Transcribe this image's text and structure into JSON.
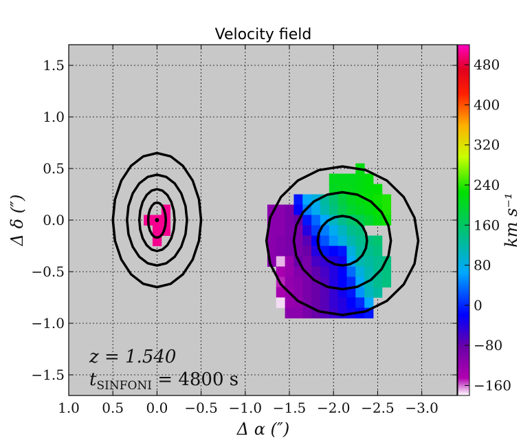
{
  "chart_data": {
    "type": "heatmap",
    "title": "Velocity field",
    "xlabel": "Δ α  (″)",
    "ylabel": "Δ δ  (″)",
    "xlim": [
      1.0,
      -3.4
    ],
    "ylim": [
      -1.7,
      1.7
    ],
    "x_ticks": [
      "1.0",
      "0.5",
      "0.0",
      "−0.5",
      "−1.0",
      "−1.5",
      "−2.0",
      "−2.5",
      "−3.0"
    ],
    "x_tick_values": [
      1.0,
      0.5,
      0.0,
      -0.5,
      -1.0,
      -1.5,
      -2.0,
      -2.5,
      -3.0
    ],
    "y_ticks": [
      "1.5",
      "1.0",
      "0.5",
      "0.0",
      "−0.5",
      "−1.0",
      "−1.5"
    ],
    "y_tick_values": [
      1.5,
      1.0,
      0.5,
      0.0,
      -0.5,
      -1.0,
      -1.5
    ],
    "grid": true,
    "annotations": {
      "redshift": "z = 1.540",
      "exposure_symbol": "t",
      "exposure_subscript": "SINFONI",
      "exposure_value": " = 4800 s"
    },
    "colorbar": {
      "label": "km s⁻¹",
      "range": [
        -180,
        520
      ],
      "ticks": [
        "480",
        "400",
        "320",
        "240",
        "160",
        "80",
        "0",
        "−80",
        "−160"
      ],
      "tick_values": [
        480,
        400,
        320,
        240,
        160,
        80,
        0,
        -80,
        -160
      ]
    },
    "pixel_size_arcsec": 0.1,
    "velocity_pixels": [
      {
        "x": -0.1,
        "y": 0.1,
        "v": 505
      },
      {
        "x": -0.1,
        "y": 0.0,
        "v": 505
      },
      {
        "x": 0.0,
        "y": 0.0,
        "v": 505
      },
      {
        "x": 0.1,
        "y": 0.0,
        "v": 505
      },
      {
        "x": 0.0,
        "y": -0.1,
        "v": 505
      },
      {
        "x": -0.1,
        "y": -0.1,
        "v": 505
      },
      {
        "x": 0.0,
        "y": -0.2,
        "v": 505
      },
      {
        "x": -2.3,
        "y": 0.5,
        "v": 190
      },
      {
        "x": -2.0,
        "y": 0.4,
        "v": 185
      },
      {
        "x": -2.1,
        "y": 0.4,
        "v": 185
      },
      {
        "x": -2.2,
        "y": 0.4,
        "v": 185
      },
      {
        "x": -2.3,
        "y": 0.4,
        "v": 190
      },
      {
        "x": -2.4,
        "y": 0.4,
        "v": 195
      },
      {
        "x": -2.0,
        "y": 0.3,
        "v": 180
      },
      {
        "x": -2.1,
        "y": 0.3,
        "v": 185
      },
      {
        "x": -2.2,
        "y": 0.3,
        "v": 185
      },
      {
        "x": -2.3,
        "y": 0.3,
        "v": 190
      },
      {
        "x": -2.4,
        "y": 0.3,
        "v": 195
      },
      {
        "x": -2.5,
        "y": 0.3,
        "v": 200
      },
      {
        "x": -1.6,
        "y": 0.2,
        "v": -30
      },
      {
        "x": -1.7,
        "y": 0.2,
        "v": 40
      },
      {
        "x": -1.8,
        "y": 0.2,
        "v": 60
      },
      {
        "x": -1.9,
        "y": 0.2,
        "v": 100
      },
      {
        "x": -2.0,
        "y": 0.2,
        "v": 130
      },
      {
        "x": -2.1,
        "y": 0.2,
        "v": 160
      },
      {
        "x": -2.2,
        "y": 0.2,
        "v": 180
      },
      {
        "x": -2.3,
        "y": 0.2,
        "v": 190
      },
      {
        "x": -2.4,
        "y": 0.2,
        "v": 200
      },
      {
        "x": -2.5,
        "y": 0.2,
        "v": 205
      },
      {
        "x": -2.6,
        "y": 0.2,
        "v": 210
      },
      {
        "x": -1.3,
        "y": 0.1,
        "v": -120
      },
      {
        "x": -1.4,
        "y": 0.1,
        "v": -120
      },
      {
        "x": -1.5,
        "y": 0.1,
        "v": -110
      },
      {
        "x": -1.6,
        "y": 0.1,
        "v": -40
      },
      {
        "x": -1.7,
        "y": 0.1,
        "v": 20
      },
      {
        "x": -1.8,
        "y": 0.1,
        "v": 50
      },
      {
        "x": -1.9,
        "y": 0.1,
        "v": 90
      },
      {
        "x": -2.0,
        "y": 0.1,
        "v": 120
      },
      {
        "x": -2.1,
        "y": 0.1,
        "v": 150
      },
      {
        "x": -2.2,
        "y": 0.1,
        "v": 170
      },
      {
        "x": -2.3,
        "y": 0.1,
        "v": 180
      },
      {
        "x": -2.4,
        "y": 0.1,
        "v": 190
      },
      {
        "x": -2.5,
        "y": 0.1,
        "v": 200
      },
      {
        "x": -2.6,
        "y": 0.1,
        "v": 210
      },
      {
        "x": -1.3,
        "y": 0.0,
        "v": -120
      },
      {
        "x": -1.4,
        "y": 0.0,
        "v": -120
      },
      {
        "x": -1.5,
        "y": 0.0,
        "v": -110
      },
      {
        "x": -1.6,
        "y": 0.0,
        "v": -100
      },
      {
        "x": -1.7,
        "y": 0.0,
        "v": -30
      },
      {
        "x": -1.8,
        "y": 0.0,
        "v": 10
      },
      {
        "x": -1.9,
        "y": 0.0,
        "v": 40
      },
      {
        "x": -2.0,
        "y": 0.0,
        "v": 80
      },
      {
        "x": -2.1,
        "y": 0.0,
        "v": 110
      },
      {
        "x": -2.2,
        "y": 0.0,
        "v": 130
      },
      {
        "x": -2.3,
        "y": 0.0,
        "v": 150
      },
      {
        "x": -2.4,
        "y": 0.0,
        "v": 170
      },
      {
        "x": -2.5,
        "y": 0.0,
        "v": 190
      },
      {
        "x": -2.6,
        "y": 0.0,
        "v": 205
      },
      {
        "x": -1.3,
        "y": -0.1,
        "v": -120
      },
      {
        "x": -1.4,
        "y": -0.1,
        "v": -120
      },
      {
        "x": -1.5,
        "y": -0.1,
        "v": -110
      },
      {
        "x": -1.6,
        "y": -0.1,
        "v": -110
      },
      {
        "x": -1.7,
        "y": -0.1,
        "v": -60
      },
      {
        "x": -1.8,
        "y": -0.1,
        "v": -10
      },
      {
        "x": -1.9,
        "y": -0.1,
        "v": 20
      },
      {
        "x": -2.0,
        "y": -0.1,
        "v": 50
      },
      {
        "x": -2.1,
        "y": -0.1,
        "v": 80
      },
      {
        "x": -2.2,
        "y": -0.1,
        "v": 110
      },
      {
        "x": -2.3,
        "y": -0.1,
        "v": 120
      },
      {
        "x": -1.3,
        "y": -0.2,
        "v": -120
      },
      {
        "x": -1.4,
        "y": -0.2,
        "v": -115
      },
      {
        "x": -1.5,
        "y": -0.2,
        "v": -110
      },
      {
        "x": -1.6,
        "y": -0.2,
        "v": -110
      },
      {
        "x": -1.7,
        "y": -0.2,
        "v": -90
      },
      {
        "x": -1.8,
        "y": -0.2,
        "v": -40
      },
      {
        "x": -1.9,
        "y": -0.2,
        "v": 0
      },
      {
        "x": -2.0,
        "y": -0.2,
        "v": 30
      },
      {
        "x": -2.1,
        "y": -0.2,
        "v": 60
      },
      {
        "x": -2.2,
        "y": -0.2,
        "v": 90
      },
      {
        "x": -2.3,
        "y": -0.2,
        "v": 110
      },
      {
        "x": -2.4,
        "y": -0.2,
        "v": 120
      },
      {
        "x": -2.5,
        "y": -0.2,
        "v": 130
      },
      {
        "x": -1.3,
        "y": -0.3,
        "v": -120
      },
      {
        "x": -1.4,
        "y": -0.3,
        "v": -115
      },
      {
        "x": -1.5,
        "y": -0.3,
        "v": -110
      },
      {
        "x": -1.6,
        "y": -0.3,
        "v": -110
      },
      {
        "x": -1.7,
        "y": -0.3,
        "v": -100
      },
      {
        "x": -1.8,
        "y": -0.3,
        "v": -60
      },
      {
        "x": -1.9,
        "y": -0.3,
        "v": -30
      },
      {
        "x": -2.0,
        "y": -0.3,
        "v": -40
      },
      {
        "x": -2.1,
        "y": -0.3,
        "v": -30
      },
      {
        "x": -2.2,
        "y": -0.3,
        "v": 60
      },
      {
        "x": -2.3,
        "y": -0.3,
        "v": 100
      },
      {
        "x": -2.4,
        "y": -0.3,
        "v": 110
      },
      {
        "x": -2.5,
        "y": -0.3,
        "v": 120
      },
      {
        "x": -1.3,
        "y": -0.4,
        "v": -120
      },
      {
        "x": -1.4,
        "y": -0.4,
        "v": -170
      },
      {
        "x": -1.5,
        "y": -0.4,
        "v": -130
      },
      {
        "x": -1.6,
        "y": -0.4,
        "v": -100
      },
      {
        "x": -1.7,
        "y": -0.4,
        "v": -110
      },
      {
        "x": -1.8,
        "y": -0.4,
        "v": -80
      },
      {
        "x": -1.9,
        "y": -0.4,
        "v": -70
      },
      {
        "x": -2.0,
        "y": -0.4,
        "v": -60
      },
      {
        "x": -2.1,
        "y": -0.4,
        "v": -50
      },
      {
        "x": -2.2,
        "y": -0.4,
        "v": 40
      },
      {
        "x": -2.3,
        "y": -0.4,
        "v": 90
      },
      {
        "x": -2.4,
        "y": -0.4,
        "v": 100
      },
      {
        "x": -2.5,
        "y": -0.4,
        "v": 110
      },
      {
        "x": -2.6,
        "y": -0.4,
        "v": 120
      },
      {
        "x": -1.4,
        "y": -0.5,
        "v": -140
      },
      {
        "x": -1.5,
        "y": -0.5,
        "v": -130
      },
      {
        "x": -1.6,
        "y": -0.5,
        "v": -115
      },
      {
        "x": -1.7,
        "y": -0.5,
        "v": -110
      },
      {
        "x": -1.8,
        "y": -0.5,
        "v": -95
      },
      {
        "x": -1.9,
        "y": -0.5,
        "v": -80
      },
      {
        "x": -2.0,
        "y": -0.5,
        "v": -60
      },
      {
        "x": -2.1,
        "y": -0.5,
        "v": -40
      },
      {
        "x": -2.2,
        "y": -0.5,
        "v": 10
      },
      {
        "x": -2.3,
        "y": -0.5,
        "v": 60
      },
      {
        "x": -2.4,
        "y": -0.5,
        "v": 90
      },
      {
        "x": -2.5,
        "y": -0.5,
        "v": 110
      },
      {
        "x": -2.6,
        "y": -0.5,
        "v": 120
      },
      {
        "x": -1.4,
        "y": -0.6,
        "v": -150
      },
      {
        "x": -1.5,
        "y": -0.6,
        "v": -125
      },
      {
        "x": -1.6,
        "y": -0.6,
        "v": -120
      },
      {
        "x": -1.7,
        "y": -0.6,
        "v": -110
      },
      {
        "x": -1.8,
        "y": -0.6,
        "v": -100
      },
      {
        "x": -1.9,
        "y": -0.6,
        "v": -85
      },
      {
        "x": -2.0,
        "y": -0.6,
        "v": -60
      },
      {
        "x": -2.1,
        "y": -0.6,
        "v": -40
      },
      {
        "x": -2.2,
        "y": -0.6,
        "v": -20
      },
      {
        "x": -2.3,
        "y": -0.6,
        "v": 40
      },
      {
        "x": -2.4,
        "y": -0.6,
        "v": 90
      },
      {
        "x": -2.5,
        "y": -0.6,
        "v": 110
      },
      {
        "x": -2.6,
        "y": -0.6,
        "v": 120
      },
      {
        "x": -1.4,
        "y": -0.7,
        "v": -140
      },
      {
        "x": -1.5,
        "y": -0.7,
        "v": -130
      },
      {
        "x": -1.6,
        "y": -0.7,
        "v": -120
      },
      {
        "x": -1.7,
        "y": -0.7,
        "v": -110
      },
      {
        "x": -1.8,
        "y": -0.7,
        "v": -100
      },
      {
        "x": -1.9,
        "y": -0.7,
        "v": -90
      },
      {
        "x": -2.0,
        "y": -0.7,
        "v": -70
      },
      {
        "x": -2.1,
        "y": -0.7,
        "v": -50
      },
      {
        "x": -2.2,
        "y": -0.7,
        "v": -30
      },
      {
        "x": -2.3,
        "y": -0.7,
        "v": 30
      },
      {
        "x": -2.4,
        "y": -0.7,
        "v": 80
      },
      {
        "x": -2.5,
        "y": -0.7,
        "v": 100
      },
      {
        "x": -1.4,
        "y": -0.8,
        "v": -175
      },
      {
        "x": -1.5,
        "y": -0.8,
        "v": -130
      },
      {
        "x": -1.6,
        "y": -0.8,
        "v": -125
      },
      {
        "x": -1.7,
        "y": -0.8,
        "v": -110
      },
      {
        "x": -1.8,
        "y": -0.8,
        "v": -100
      },
      {
        "x": -1.9,
        "y": -0.8,
        "v": -90
      },
      {
        "x": -2.0,
        "y": -0.8,
        "v": -70
      },
      {
        "x": -2.1,
        "y": -0.8,
        "v": -60
      },
      {
        "x": -2.2,
        "y": -0.8,
        "v": -40
      },
      {
        "x": -2.3,
        "y": -0.8,
        "v": -20
      },
      {
        "x": -2.4,
        "y": -0.8,
        "v": 40
      },
      {
        "x": -1.5,
        "y": -0.9,
        "v": -120
      },
      {
        "x": -1.6,
        "y": -0.9,
        "v": -120
      },
      {
        "x": -1.7,
        "y": -0.9,
        "v": -110
      },
      {
        "x": -1.8,
        "y": -0.9,
        "v": -100
      },
      {
        "x": -1.9,
        "y": -0.9,
        "v": -90
      },
      {
        "x": -2.0,
        "y": -0.9,
        "v": -75
      },
      {
        "x": -2.1,
        "y": -0.9,
        "v": -60
      },
      {
        "x": -2.2,
        "y": -0.9,
        "v": -50
      },
      {
        "x": -2.3,
        "y": -0.9,
        "v": -40
      },
      {
        "x": -2.4,
        "y": -0.9,
        "v": -30
      }
    ],
    "contours": [
      {
        "group": "left",
        "cx": 0.0,
        "cy": 0.0,
        "rx": 0.5,
        "ry": 0.65
      },
      {
        "group": "left",
        "cx": 0.0,
        "cy": 0.0,
        "rx": 0.34,
        "ry": 0.44
      },
      {
        "group": "left",
        "cx": 0.0,
        "cy": 0.0,
        "rx": 0.2,
        "ry": 0.3
      },
      {
        "group": "left",
        "cx": 0.0,
        "cy": 0.0,
        "rx": 0.1,
        "ry": 0.17
      },
      {
        "group": "right",
        "cx": -2.1,
        "cy": -0.2,
        "rx": 0.86,
        "ry": 0.72
      },
      {
        "group": "right",
        "cx": -2.1,
        "cy": -0.2,
        "rx": 0.55,
        "ry": 0.47
      },
      {
        "group": "right",
        "cx": -2.1,
        "cy": -0.2,
        "rx": 0.28,
        "ry": 0.24
      }
    ],
    "marker": {
      "x": 0.0,
      "y": 0.0
    }
  }
}
